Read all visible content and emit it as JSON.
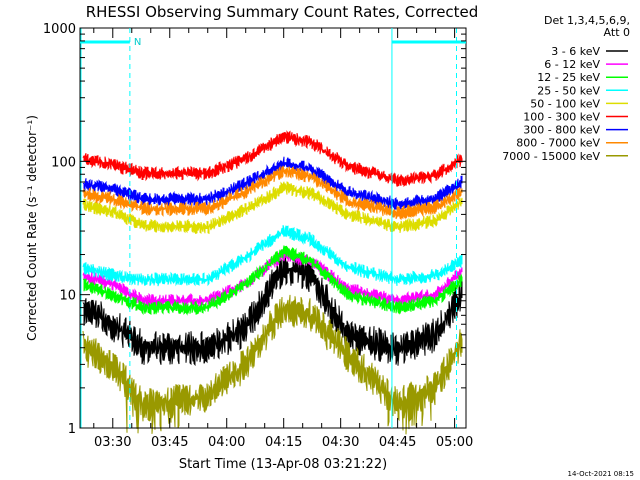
{
  "chart_data": {
    "type": "line",
    "title": "RHESSI Observing Summary Count Rates, Corrected",
    "xlabel": "Start Time (13-Apr-08 03:21:22)",
    "ylabel": "Corrected Count Rate (s⁻¹ detector⁻¹)",
    "y_scale": "log",
    "ylim": [
      1,
      1000
    ],
    "y_ticks": [
      {
        "value": 1,
        "label": "1"
      },
      {
        "value": 10,
        "label": "10"
      },
      {
        "value": 100,
        "label": "100"
      },
      {
        "value": 1000,
        "label": "1000"
      }
    ],
    "x_ticks": [
      "03:30",
      "03:45",
      "04:00",
      "04:15",
      "04:30",
      "04:45",
      "05:00"
    ],
    "x_tick_minutes": [
      210,
      225,
      240,
      255,
      270,
      285,
      300
    ],
    "xlim_minutes": [
      201.37,
      303.0
    ],
    "legend_title_lines": [
      "Det 1,3,4,5,6,9,",
      "Att 0"
    ],
    "legend_position": "right",
    "series": [
      {
        "name": "3 - 6 keV",
        "color": "#000000",
        "values": [
          [
            202,
            8
          ],
          [
            210,
            6
          ],
          [
            218,
            4.0
          ],
          [
            235,
            4.0
          ],
          [
            245,
            5.5
          ],
          [
            255,
            16
          ],
          [
            262,
            14
          ],
          [
            272,
            5
          ],
          [
            285,
            3.8
          ],
          [
            295,
            5
          ],
          [
            302,
            10
          ]
        ]
      },
      {
        "name": "6 - 12 keV",
        "color": "#ff00ff",
        "values": [
          [
            202,
            14
          ],
          [
            210,
            12
          ],
          [
            218,
            9
          ],
          [
            235,
            9
          ],
          [
            245,
            12
          ],
          [
            255,
            20
          ],
          [
            262,
            18
          ],
          [
            272,
            11
          ],
          [
            285,
            9
          ],
          [
            295,
            10
          ],
          [
            302,
            15
          ]
        ]
      },
      {
        "name": "12 - 25 keV",
        "color": "#00ff00",
        "values": [
          [
            202,
            12
          ],
          [
            210,
            10
          ],
          [
            218,
            8
          ],
          [
            235,
            8
          ],
          [
            245,
            12
          ],
          [
            255,
            21
          ],
          [
            262,
            18
          ],
          [
            272,
            10
          ],
          [
            285,
            8
          ],
          [
            295,
            9
          ],
          [
            302,
            13
          ]
        ]
      },
      {
        "name": "25 - 50 keV",
        "color": "#00ffff",
        "values": [
          [
            202,
            16
          ],
          [
            210,
            14
          ],
          [
            218,
            13
          ],
          [
            235,
            13
          ],
          [
            245,
            19
          ],
          [
            255,
            30
          ],
          [
            262,
            26
          ],
          [
            272,
            16
          ],
          [
            285,
            13
          ],
          [
            295,
            14
          ],
          [
            302,
            18
          ]
        ]
      },
      {
        "name": "50 - 100 keV",
        "color": "#dddd00",
        "values": [
          [
            202,
            47
          ],
          [
            210,
            42
          ],
          [
            218,
            33
          ],
          [
            235,
            32
          ],
          [
            245,
            44
          ],
          [
            255,
            63
          ],
          [
            262,
            58
          ],
          [
            272,
            40
          ],
          [
            285,
            32
          ],
          [
            295,
            36
          ],
          [
            302,
            50
          ]
        ]
      },
      {
        "name": "100 - 300 keV",
        "color": "#ff0000",
        "values": [
          [
            202,
            104
          ],
          [
            210,
            95
          ],
          [
            218,
            81
          ],
          [
            235,
            81
          ],
          [
            245,
            105
          ],
          [
            255,
            152
          ],
          [
            262,
            140
          ],
          [
            272,
            92
          ],
          [
            285,
            72
          ],
          [
            295,
            78
          ],
          [
            302,
            104
          ]
        ]
      },
      {
        "name": "300 - 800 keV",
        "color": "#0000ff",
        "values": [
          [
            202,
            68
          ],
          [
            210,
            62
          ],
          [
            218,
            52
          ],
          [
            235,
            52
          ],
          [
            245,
            68
          ],
          [
            255,
            97
          ],
          [
            262,
            88
          ],
          [
            272,
            58
          ],
          [
            285,
            48
          ],
          [
            295,
            52
          ],
          [
            302,
            70
          ]
        ]
      },
      {
        "name": "800 - 7000 keV",
        "color": "#ff8800",
        "values": [
          [
            202,
            58
          ],
          [
            210,
            52
          ],
          [
            218,
            44
          ],
          [
            235,
            44
          ],
          [
            245,
            59
          ],
          [
            255,
            85
          ],
          [
            262,
            77
          ],
          [
            272,
            50
          ],
          [
            285,
            41
          ],
          [
            295,
            45
          ],
          [
            302,
            60
          ]
        ]
      },
      {
        "name": "7000 - 15000 keV",
        "color": "#999900",
        "values": [
          [
            202,
            4
          ],
          [
            210,
            3
          ],
          [
            218,
            1.5
          ],
          [
            235,
            1.7
          ],
          [
            245,
            3
          ],
          [
            255,
            8
          ],
          [
            262,
            7
          ],
          [
            272,
            3.5
          ],
          [
            285,
            1.5
          ],
          [
            295,
            2
          ],
          [
            302,
            4.5
          ]
        ]
      }
    ],
    "annotations": {
      "n_flag": "N",
      "night_bar_ranges_minutes": [
        [
          201.37,
          214.5
        ],
        [
          283.5,
          303.0
        ]
      ],
      "night_markers_minutes": [
        214.5,
        283.5,
        300.5
      ],
      "timestamp": "14-Oct-2021 08:15"
    }
  }
}
